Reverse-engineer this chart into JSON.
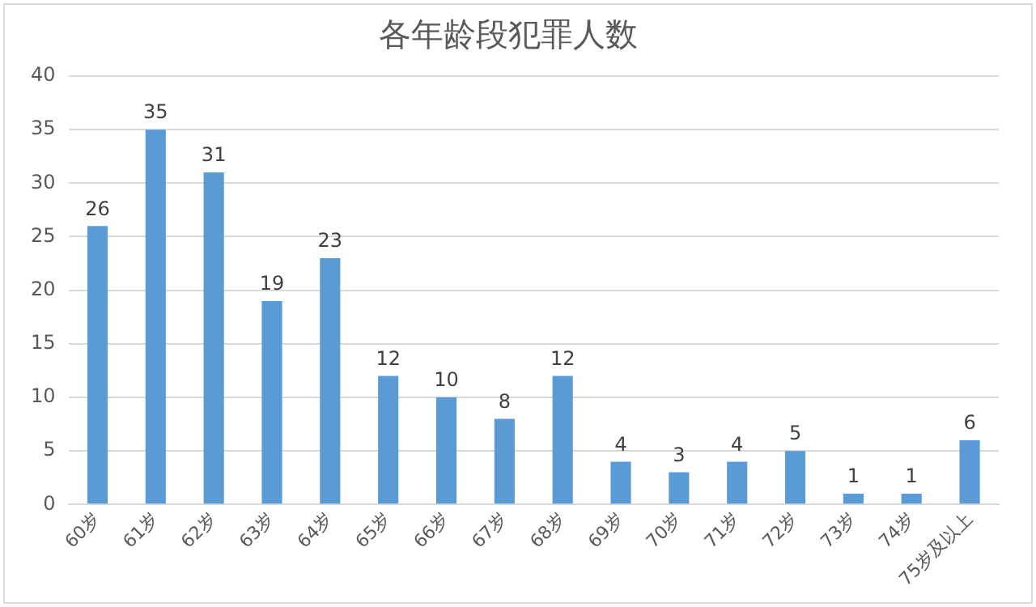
{
  "chart_data": {
    "type": "bar",
    "title": "各年龄段犯罪人数",
    "categories": [
      "60岁",
      "61岁",
      "62岁",
      "63岁",
      "64岁",
      "65岁",
      "66岁",
      "67岁",
      "68岁",
      "69岁",
      "70岁",
      "71岁",
      "72岁",
      "73岁",
      "74岁",
      "75岁及以上"
    ],
    "values": [
      26,
      35,
      31,
      19,
      23,
      12,
      10,
      8,
      12,
      4,
      3,
      4,
      5,
      1,
      1,
      6
    ],
    "color": "#5b9bd5",
    "ylim": [
      0,
      40
    ],
    "yticks": [
      0,
      5,
      10,
      15,
      20,
      25,
      30,
      35,
      40
    ],
    "grid": "y",
    "data_labels": true,
    "legend": false
  }
}
